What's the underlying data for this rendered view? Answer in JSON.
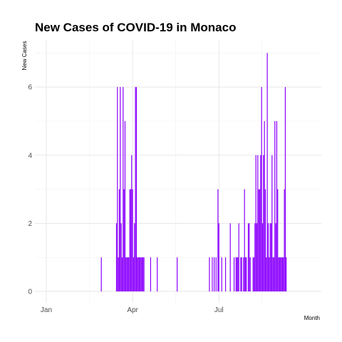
{
  "chart_data": {
    "type": "bar",
    "title": "New Cases of COVID-19 in Monaco",
    "xlabel": "Month",
    "ylabel": "New Cases",
    "ylim": [
      0,
      7.3
    ],
    "y_ticks": [
      0,
      2,
      4,
      6
    ],
    "y_tick_labels": [
      "0",
      "2",
      "4",
      "6"
    ],
    "x_tick_labels": [
      "Jan",
      "Apr",
      "Jul"
    ],
    "x_range_days": [
      -12,
      290
    ],
    "x_tick_days": [
      0,
      91,
      182
    ],
    "x_minor_days": [
      45.5,
      136.5,
      227.5
    ],
    "grid": true,
    "bar_color": "#8b00ff",
    "series": [
      {
        "days": [
          58,
          74,
          75,
          76,
          77,
          78,
          79,
          80,
          81,
          82,
          83,
          84,
          85,
          86,
          87,
          88,
          89,
          90,
          91,
          92,
          93,
          94,
          95,
          96,
          97,
          98,
          99,
          100,
          101,
          102,
          103,
          110,
          117,
          138,
          172,
          175,
          177,
          179,
          181,
          182,
          185,
          189,
          194,
          198,
          200,
          201,
          202,
          203,
          205,
          206,
          208,
          209,
          210,
          211,
          213,
          214,
          215,
          218,
          219,
          220,
          221,
          222,
          223,
          224,
          225,
          226,
          227,
          228,
          229,
          230,
          231,
          232,
          233,
          234,
          235,
          236,
          237,
          238,
          239,
          240,
          241,
          242,
          243,
          244,
          245,
          246,
          247,
          248,
          249,
          250,
          251,
          252,
          253
        ],
        "values": [
          1,
          2,
          6,
          1,
          3,
          6,
          2,
          1,
          6,
          3,
          5,
          1,
          1,
          1,
          1,
          3,
          3,
          4,
          3,
          1,
          2,
          6,
          6,
          1,
          1,
          1,
          1,
          1,
          1,
          1,
          1,
          1,
          1,
          1,
          1,
          1,
          1,
          1,
          3,
          2,
          1,
          1,
          2,
          1,
          1,
          1,
          1,
          2,
          1,
          1,
          1,
          3,
          1,
          1,
          2,
          2,
          1,
          1,
          1,
          2,
          4,
          2,
          4,
          3,
          3,
          4,
          6,
          2,
          4,
          5,
          3,
          1,
          7,
          2,
          1,
          2,
          2,
          4,
          1,
          1,
          5,
          2,
          5,
          3,
          1,
          1,
          1,
          1,
          1,
          1,
          3,
          6,
          1
        ]
      }
    ]
  }
}
